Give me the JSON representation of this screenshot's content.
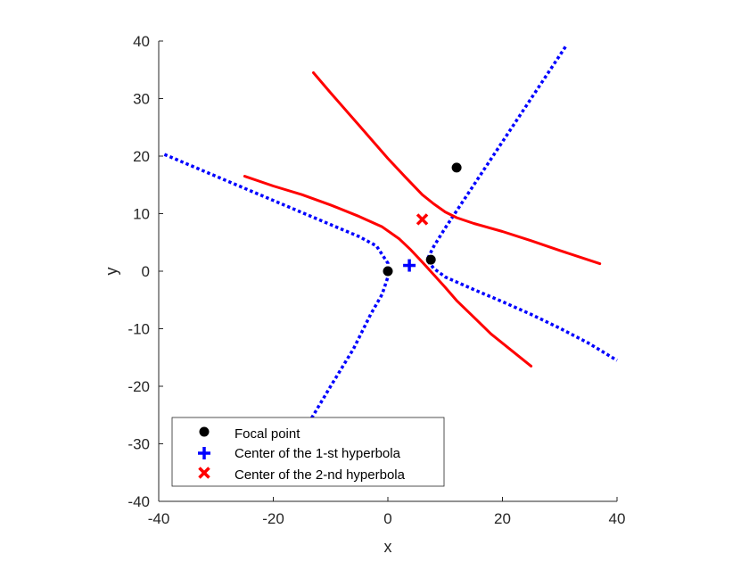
{
  "chart_data": {
    "type": "line",
    "title": "",
    "xlabel": "x",
    "ylabel": "y",
    "xlim": [
      -40,
      40
    ],
    "ylim": [
      -40,
      40
    ],
    "xticks": [
      -40,
      -20,
      0,
      20,
      40
    ],
    "yticks": [
      -40,
      -30,
      -20,
      -10,
      0,
      10,
      20,
      30,
      40
    ],
    "grid": false,
    "legend_location": "bottom-left",
    "legend": [
      {
        "label": "Focal point",
        "marker": "filled-circle",
        "color": "#000000"
      },
      {
        "label": "Center of the 1-st hyperbola",
        "marker": "plus",
        "color": "#0000ff"
      },
      {
        "label": "Center of the 2-nd hyperbola",
        "marker": "x",
        "color": "#ff0000"
      }
    ],
    "focal_points": [
      {
        "x": 0,
        "y": 0
      },
      {
        "x": 7.5,
        "y": 2
      },
      {
        "x": 12,
        "y": 18
      }
    ],
    "centers": [
      {
        "x": 3.75,
        "y": 1,
        "color": "#0000ff",
        "marker": "plus"
      },
      {
        "x": 6,
        "y": 9,
        "color": "#ff0000",
        "marker": "x"
      }
    ],
    "series": [
      {
        "style": "dotted",
        "color": "#0000ff",
        "branches": [
          [
            [
              -39,
              20.3
            ],
            [
              -30,
              16.5
            ],
            [
              -20,
              12.3
            ],
            [
              -10,
              8.1
            ],
            [
              -5,
              6
            ],
            [
              -2,
              4.4
            ],
            [
              0,
              1.4
            ],
            [
              0,
              -1
            ],
            [
              -1,
              -4
            ],
            [
              -3,
              -7.5
            ],
            [
              -6,
              -13.5
            ],
            [
              -10,
              -20
            ],
            [
              -13,
              -25
            ],
            [
              -15.5,
              -29
            ]
          ],
          [
            [
              31,
              39
            ],
            [
              25,
              30
            ],
            [
              20,
              22.5
            ],
            [
              15,
              15
            ],
            [
              10,
              7.5
            ],
            [
              8,
              4.3
            ],
            [
              7,
              2.3
            ],
            [
              7.1,
              1.6
            ],
            [
              8,
              0.5
            ],
            [
              10,
              -1
            ],
            [
              15,
              -3.2
            ],
            [
              20,
              -5.3
            ],
            [
              25,
              -7.5
            ],
            [
              30,
              -9.9
            ],
            [
              35,
              -12.5
            ],
            [
              40,
              -15.5
            ]
          ]
        ]
      },
      {
        "style": "solid",
        "color": "#ff0000",
        "branches": [
          [
            [
              -13,
              34.5
            ],
            [
              -10,
              31
            ],
            [
              -5,
              25.3
            ],
            [
              0,
              19.6
            ],
            [
              3,
              16.4
            ],
            [
              6,
              13.3
            ],
            [
              8,
              11.7
            ],
            [
              10,
              10.3
            ],
            [
              12,
              9.3
            ],
            [
              15,
              8.3
            ],
            [
              20,
              6.9
            ],
            [
              25,
              5.3
            ],
            [
              30,
              3.6
            ],
            [
              37,
              1.3
            ]
          ],
          [
            [
              -25,
              16.5
            ],
            [
              -20,
              14.8
            ],
            [
              -15,
              13.3
            ],
            [
              -10,
              11.5
            ],
            [
              -5,
              9.5
            ],
            [
              -1,
              7.7
            ],
            [
              2,
              5.6
            ],
            [
              4,
              3.7
            ],
            [
              6,
              1.6
            ],
            [
              8,
              -0.6
            ],
            [
              10,
              -2.8
            ],
            [
              12,
              -5.1
            ],
            [
              15,
              -8
            ],
            [
              18,
              -10.9
            ],
            [
              21,
              -13.3
            ],
            [
              25,
              -16.5
            ]
          ]
        ]
      }
    ]
  }
}
